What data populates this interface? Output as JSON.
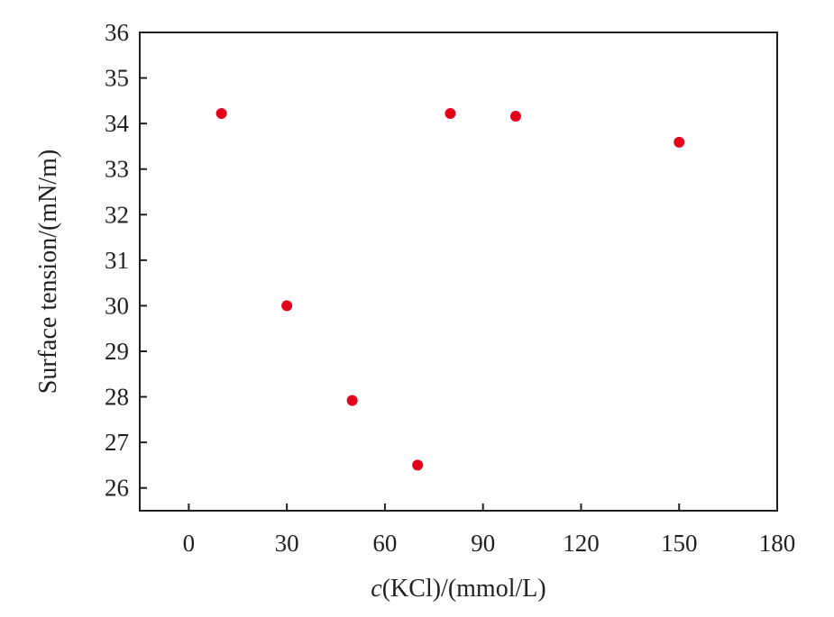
{
  "chart_data": {
    "type": "scatter",
    "title": "",
    "xlabel_italic": "c",
    "xlabel_rest": "(KCl)/(mmol/L)",
    "ylabel": "Surface tension/(mN/m)",
    "xlim": [
      -15,
      180
    ],
    "ylim": [
      25.5,
      36
    ],
    "xticks": [
      0,
      30,
      60,
      90,
      120,
      150,
      180
    ],
    "yticks": [
      26,
      27,
      28,
      29,
      30,
      31,
      32,
      33,
      34,
      35,
      36
    ],
    "grid": false,
    "legend": "none",
    "marker_color": "#e2001a",
    "axis_color": "#231f20",
    "series": [
      {
        "x": [
          10,
          30,
          50,
          70,
          80,
          100,
          150
        ],
        "y": [
          34.22,
          30.0,
          27.92,
          26.5,
          34.22,
          34.16,
          33.59
        ]
      }
    ]
  }
}
